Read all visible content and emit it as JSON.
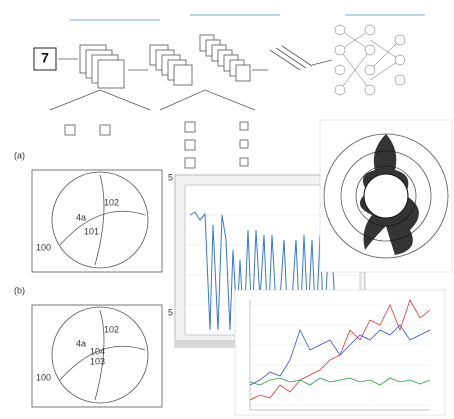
{
  "network": {
    "input_digit": "7"
  },
  "figure_a": {
    "label": "(a)",
    "callouts": [
      "102",
      "4a",
      "101",
      "100",
      "5"
    ]
  },
  "figure_b": {
    "label": "(b)",
    "callouts": [
      "102",
      "4a",
      "104",
      "103",
      "100",
      "5"
    ]
  }
}
